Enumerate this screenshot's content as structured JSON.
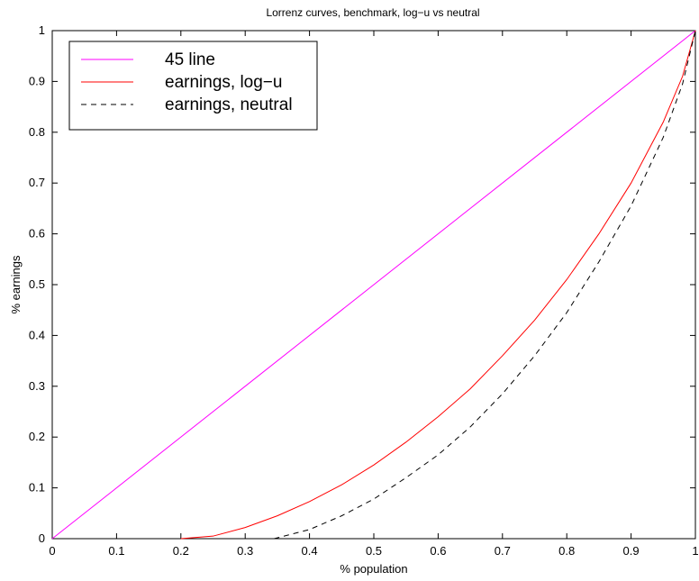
{
  "chart_data": {
    "type": "line",
    "title": "Lorrenz curves, benchmark, log−u vs neutral",
    "xlabel": "% population",
    "ylabel": "% earnings",
    "xlim": [
      0,
      1
    ],
    "ylim": [
      0,
      1
    ],
    "xticks": [
      "0",
      "0.1",
      "0.2",
      "0.3",
      "0.4",
      "0.5",
      "0.6",
      "0.7",
      "0.8",
      "0.9",
      "1"
    ],
    "yticks": [
      "0",
      "0.1",
      "0.2",
      "0.3",
      "0.4",
      "0.5",
      "0.6",
      "0.7",
      "0.8",
      "0.9",
      "1"
    ],
    "grid": false,
    "legend_position": "top-left",
    "series": [
      {
        "name": "45 line",
        "color": "#ff00ff",
        "style": "solid",
        "x": [
          0,
          1
        ],
        "y": [
          0,
          1
        ]
      },
      {
        "name": "earnings, log−u",
        "color": "#ff0000",
        "style": "solid",
        "x": [
          0.2,
          0.25,
          0.3,
          0.35,
          0.4,
          0.45,
          0.5,
          0.55,
          0.6,
          0.65,
          0.7,
          0.75,
          0.8,
          0.85,
          0.9,
          0.95,
          0.98,
          1.0
        ],
        "y": [
          0,
          0.005,
          0.022,
          0.045,
          0.073,
          0.106,
          0.145,
          0.19,
          0.24,
          0.295,
          0.36,
          0.43,
          0.51,
          0.6,
          0.7,
          0.82,
          0.91,
          1.0
        ]
      },
      {
        "name": "earnings, neutral",
        "color": "#000000",
        "style": "dashed",
        "x": [
          0.345,
          0.4,
          0.45,
          0.5,
          0.55,
          0.6,
          0.65,
          0.7,
          0.75,
          0.8,
          0.85,
          0.9,
          0.95,
          0.98,
          1.0
        ],
        "y": [
          0,
          0.018,
          0.045,
          0.078,
          0.12,
          0.165,
          0.22,
          0.285,
          0.36,
          0.445,
          0.545,
          0.655,
          0.79,
          0.895,
          1.0
        ]
      }
    ]
  }
}
